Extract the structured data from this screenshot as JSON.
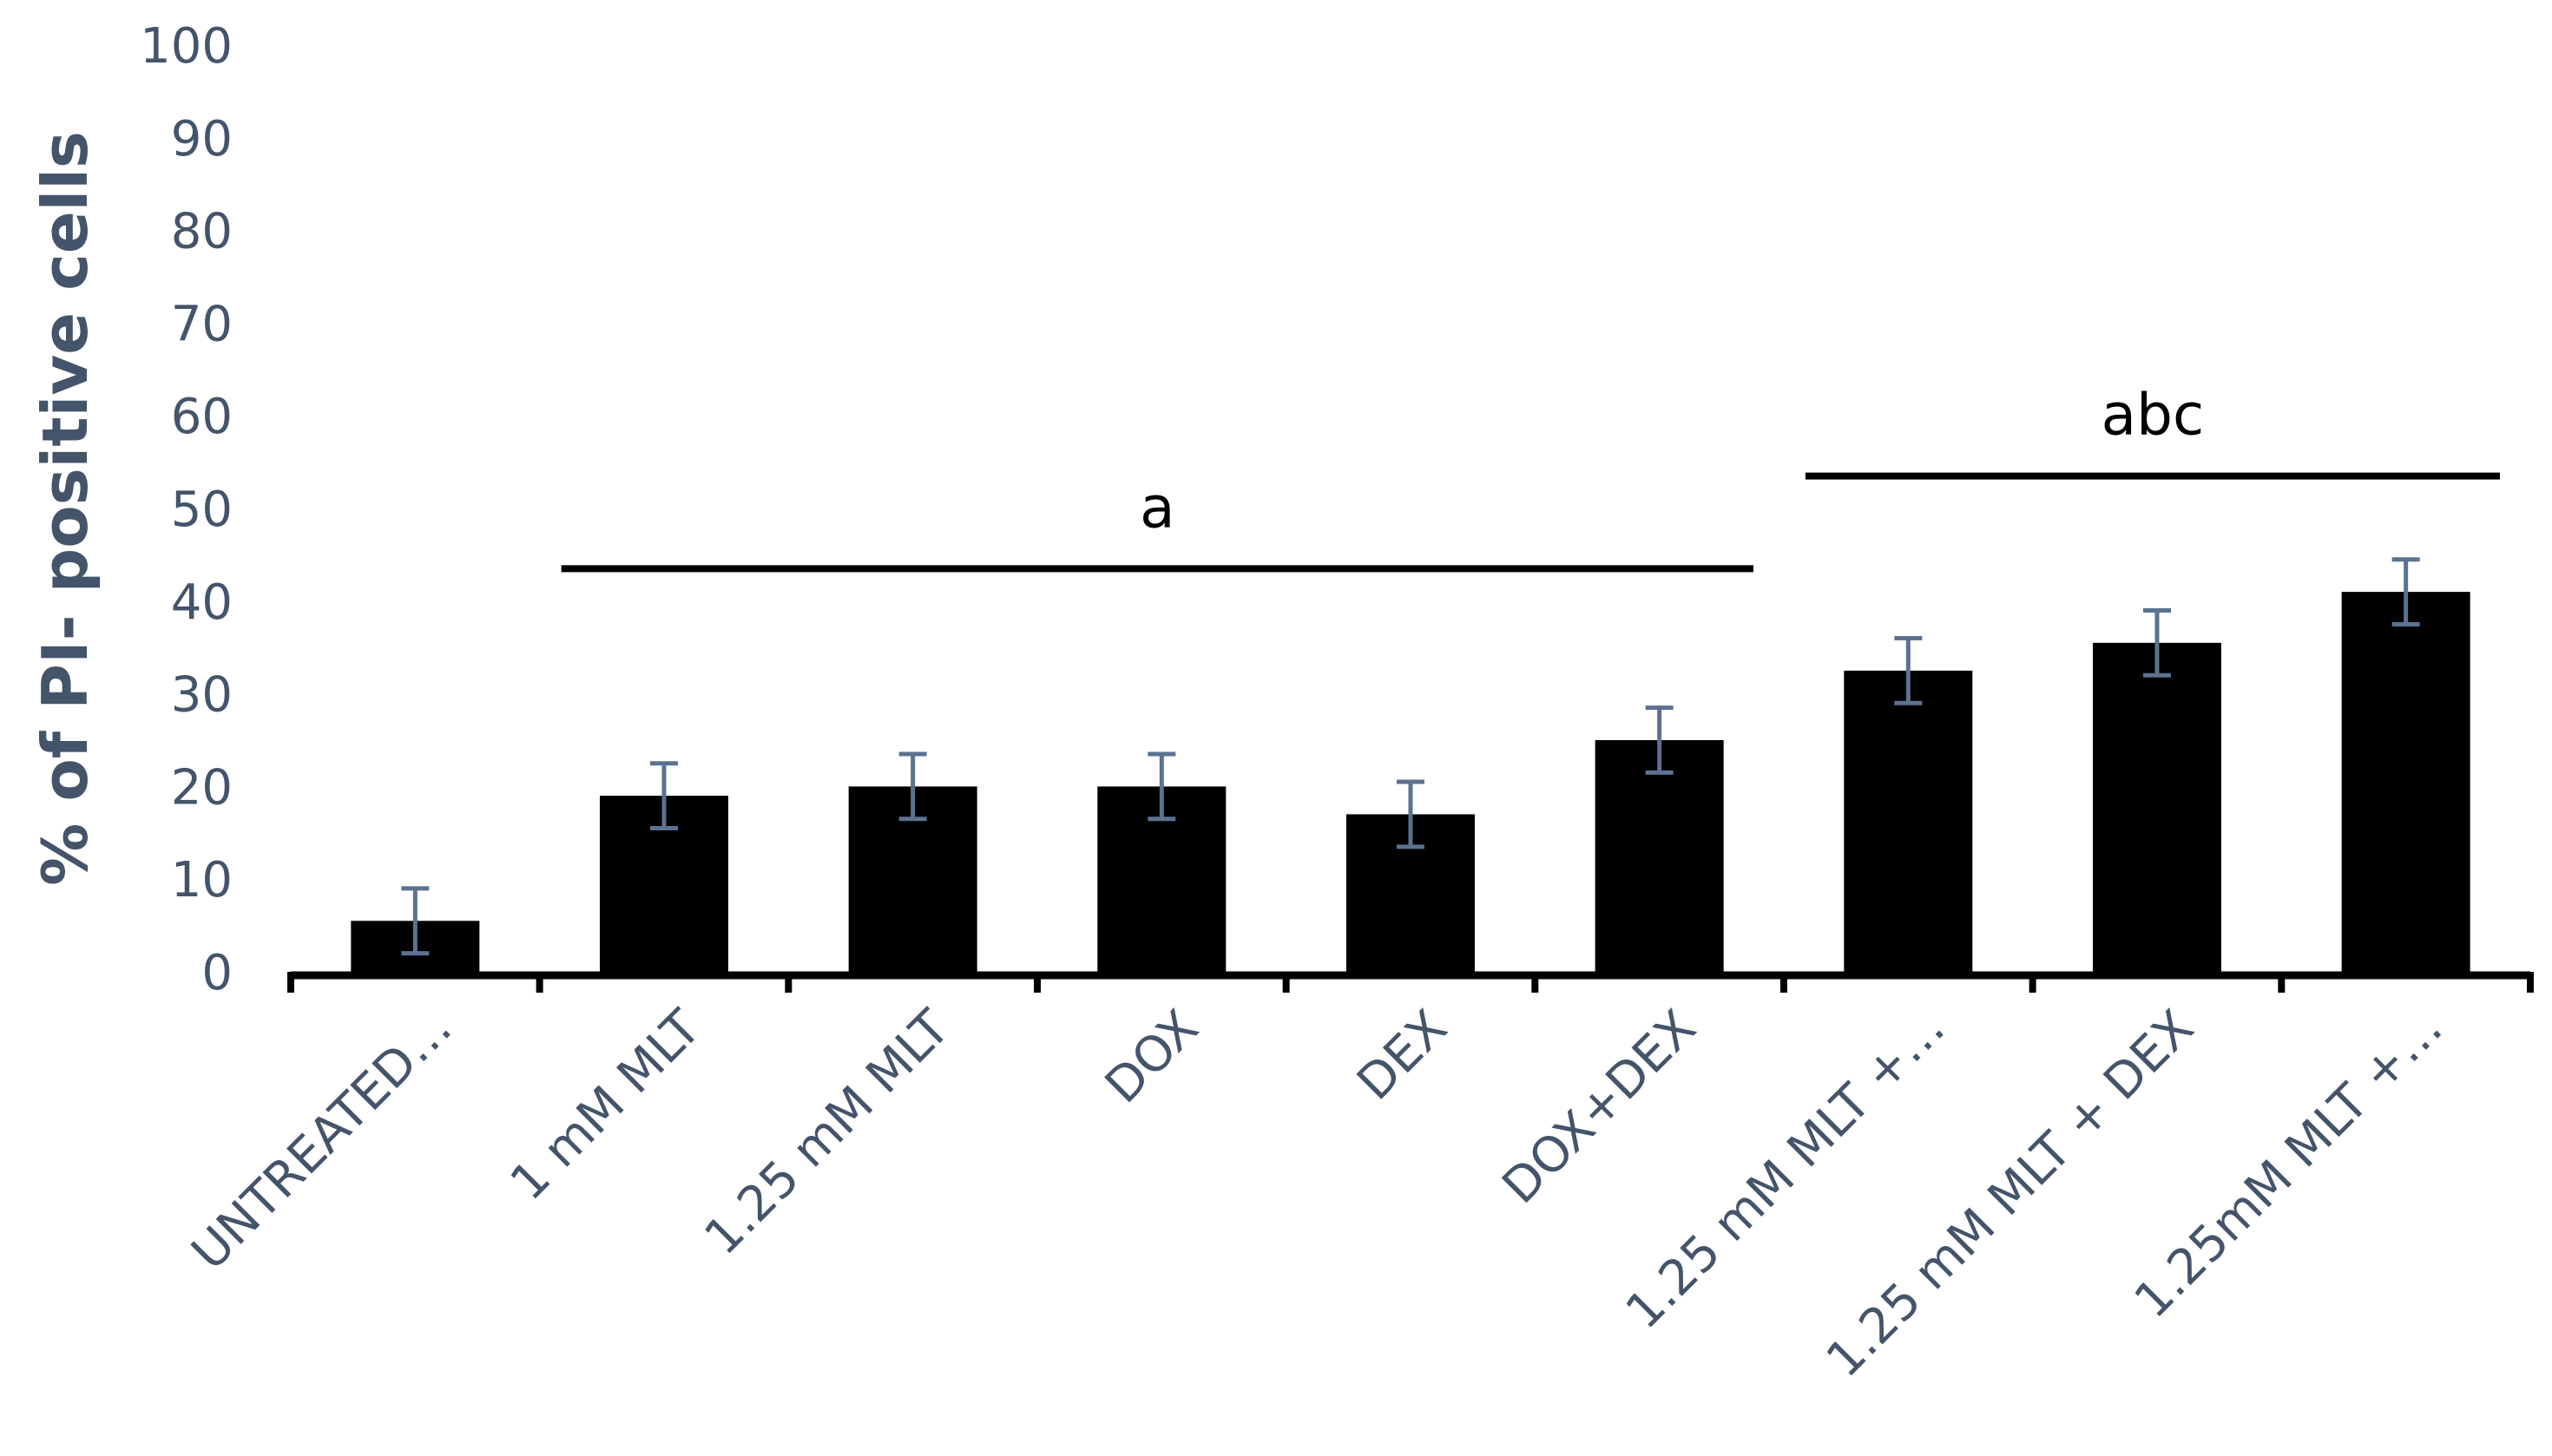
{
  "chart_data": {
    "type": "bar",
    "title": "",
    "xlabel": "",
    "ylabel": "% of PI- positive cells",
    "ylim": [
      0,
      100
    ],
    "yticks": [
      0,
      10,
      20,
      30,
      40,
      50,
      60,
      70,
      80,
      90,
      100
    ],
    "ytick_labels": [
      "0",
      "10",
      "20",
      "30",
      "40",
      "50",
      "60",
      "70",
      "80",
      "90",
      "100"
    ],
    "categories": [
      "UNTREATED…",
      "1 mM MLT",
      "1.25 mM MLT",
      "DOX",
      "DEX",
      "DOX+DEX",
      "1.25 mM MLT +…",
      "1.25 mM MLT + DEX",
      "1.25mM MLT +…"
    ],
    "values": [
      5.5,
      19,
      20,
      20,
      17,
      25,
      32.5,
      35.5,
      41
    ],
    "errors": [
      3.5,
      3.5,
      3.5,
      3.5,
      3.5,
      3.5,
      3.5,
      3.5,
      3.5
    ],
    "grid": false,
    "annotations": [
      {
        "text": "a",
        "from_index": 1,
        "to_index": 5,
        "level": 43.5
      },
      {
        "text": "abc",
        "from_index": 6,
        "to_index": 8,
        "level": 53.5
      }
    ],
    "colors": {
      "bar": "#000000",
      "error": "#5b7290",
      "axis": "#000000",
      "text": "#44546a"
    }
  }
}
